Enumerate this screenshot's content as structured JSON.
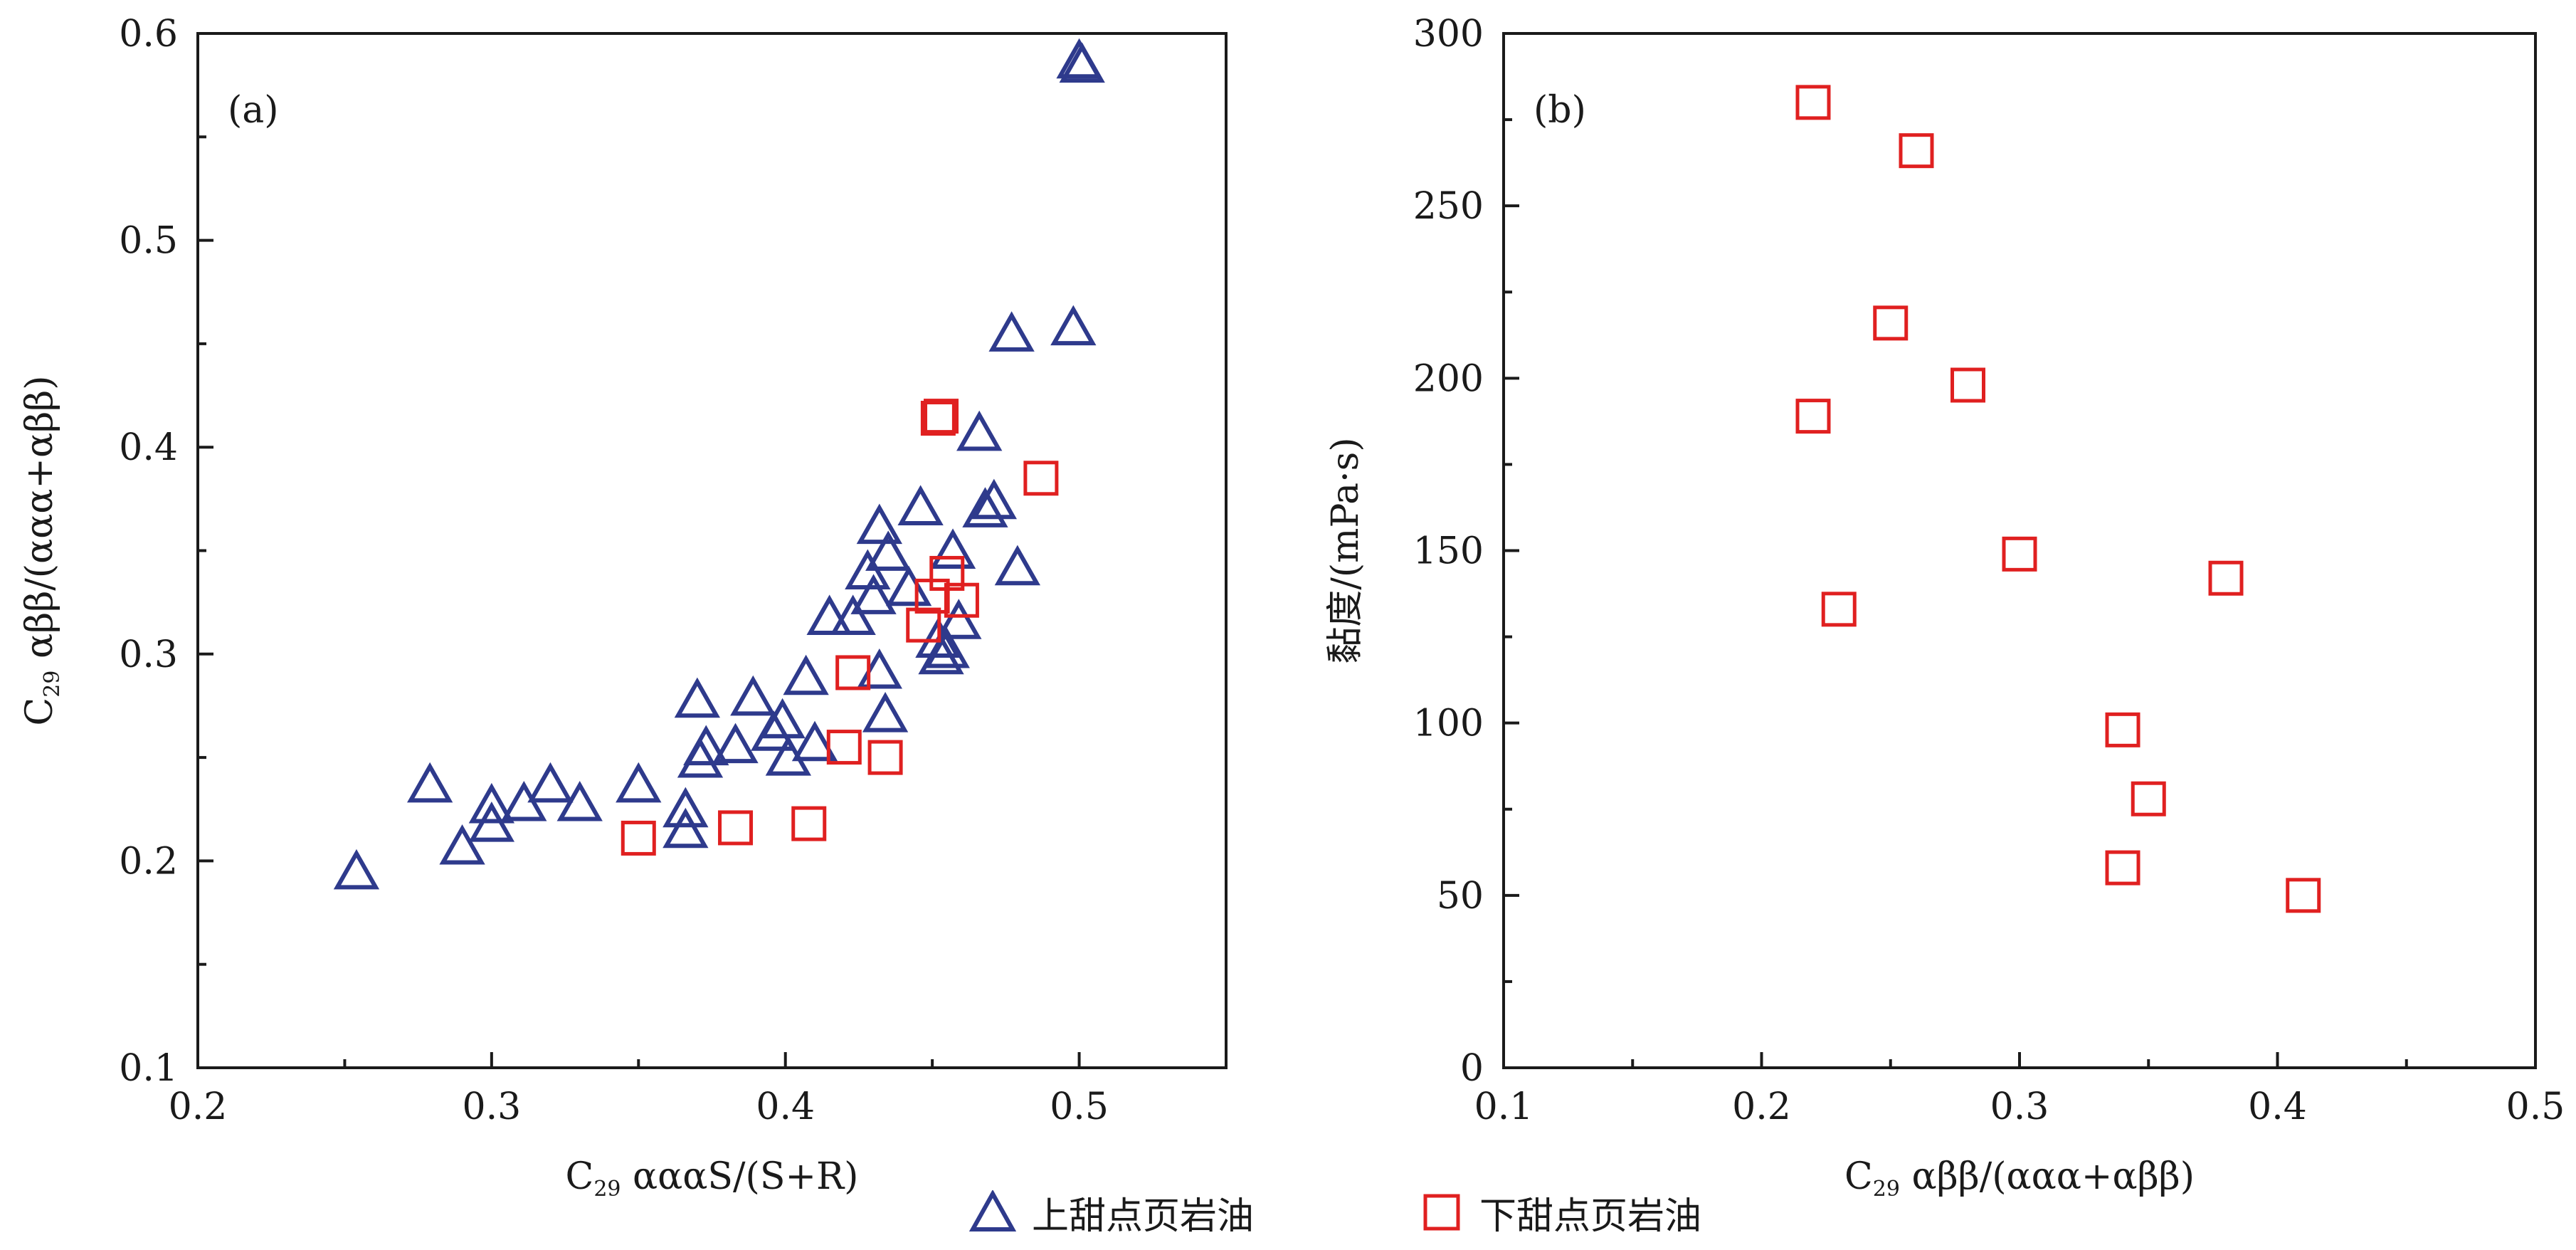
{
  "colors": {
    "upper": "#2e3a8c",
    "lower": "#e02020",
    "axis": "#1a1a1a"
  },
  "legend": {
    "upper_icon": "triangle-marker",
    "upper_label": "上甜点页岩油",
    "lower_icon": "square-marker",
    "lower_label": "下甜点页岩油"
  },
  "chart_data": [
    {
      "type": "scatter",
      "panel_label": "(a)",
      "title": "",
      "xlabel": {
        "main": "C",
        "sub": "29",
        "rest": " αααS/(S+R)"
      },
      "ylabel": {
        "main": "C",
        "sub": "29",
        "rest": " αββ/(ααα+αββ)"
      },
      "xlim": [
        0.2,
        0.55
      ],
      "ylim": [
        0.1,
        0.6
      ],
      "xticks": [
        0.2,
        0.3,
        0.4,
        0.5
      ],
      "yticks": [
        0.1,
        0.2,
        0.3,
        0.4,
        0.5,
        0.6
      ],
      "x_minor_step": 0.05,
      "y_minor_step": 0.05,
      "grid": false,
      "series": [
        {
          "key": "upper",
          "marker": "triangle",
          "points": [
            [
              0.254,
              0.195
            ],
            [
              0.279,
              0.237
            ],
            [
              0.29,
              0.207
            ],
            [
              0.3,
              0.227
            ],
            [
              0.3,
              0.218
            ],
            [
              0.311,
              0.228
            ],
            [
              0.32,
              0.237
            ],
            [
              0.33,
              0.228
            ],
            [
              0.35,
              0.237
            ],
            [
              0.366,
              0.225
            ],
            [
              0.366,
              0.215
            ],
            [
              0.37,
              0.278
            ],
            [
              0.371,
              0.249
            ],
            [
              0.373,
              0.255
            ],
            [
              0.383,
              0.256
            ],
            [
              0.389,
              0.279
            ],
            [
              0.396,
              0.262
            ],
            [
              0.399,
              0.268
            ],
            [
              0.401,
              0.25
            ],
            [
              0.407,
              0.289
            ],
            [
              0.41,
              0.257
            ],
            [
              0.415,
              0.318
            ],
            [
              0.423,
              0.318
            ],
            [
              0.428,
              0.34
            ],
            [
              0.43,
              0.328
            ],
            [
              0.432,
              0.292
            ],
            [
              0.432,
              0.362
            ],
            [
              0.434,
              0.271
            ],
            [
              0.435,
              0.349
            ],
            [
              0.442,
              0.332
            ],
            [
              0.446,
              0.371
            ],
            [
              0.452,
              0.307
            ],
            [
              0.453,
              0.299
            ],
            [
              0.455,
              0.302
            ],
            [
              0.457,
              0.35
            ],
            [
              0.459,
              0.316
            ],
            [
              0.466,
              0.407
            ],
            [
              0.468,
              0.37
            ],
            [
              0.471,
              0.374
            ],
            [
              0.477,
              0.455
            ],
            [
              0.479,
              0.342
            ],
            [
              0.498,
              0.458
            ],
            [
              0.501,
              0.585
            ],
            [
              0.5,
              0.587
            ]
          ]
        },
        {
          "key": "lower",
          "marker": "square",
          "points": [
            [
              0.35,
              0.211
            ],
            [
              0.383,
              0.216
            ],
            [
              0.408,
              0.218
            ],
            [
              0.42,
              0.255
            ],
            [
              0.423,
              0.291
            ],
            [
              0.434,
              0.25
            ],
            [
              0.447,
              0.314
            ],
            [
              0.45,
              0.328
            ],
            [
              0.452,
              0.414
            ],
            [
              0.453,
              0.415
            ],
            [
              0.455,
              0.339
            ],
            [
              0.46,
              0.326
            ],
            [
              0.487,
              0.385
            ]
          ]
        }
      ]
    },
    {
      "type": "scatter",
      "panel_label": "(b)",
      "title": "",
      "xlabel": {
        "main": "C",
        "sub": "29",
        "rest": " αββ/(ααα+αββ)"
      },
      "ylabel": {
        "main": "黏度",
        "sub": "",
        "rest": "/(mPa·s)"
      },
      "xlim": [
        0.1,
        0.5
      ],
      "ylim": [
        0,
        300
      ],
      "xticks": [
        0.1,
        0.2,
        0.3,
        0.4,
        0.5
      ],
      "yticks": [
        0,
        50,
        100,
        150,
        200,
        250,
        300
      ],
      "x_minor_step": 0.05,
      "y_minor_step": 25,
      "grid": false,
      "series": [
        {
          "key": "lower",
          "marker": "square",
          "points": [
            [
              0.22,
              280
            ],
            [
              0.26,
              266
            ],
            [
              0.25,
              216
            ],
            [
              0.28,
              198
            ],
            [
              0.22,
              189
            ],
            [
              0.3,
              149
            ],
            [
              0.38,
              142
            ],
            [
              0.23,
              133
            ],
            [
              0.34,
              98
            ],
            [
              0.35,
              78
            ],
            [
              0.34,
              58
            ],
            [
              0.41,
              50
            ]
          ]
        }
      ]
    }
  ]
}
